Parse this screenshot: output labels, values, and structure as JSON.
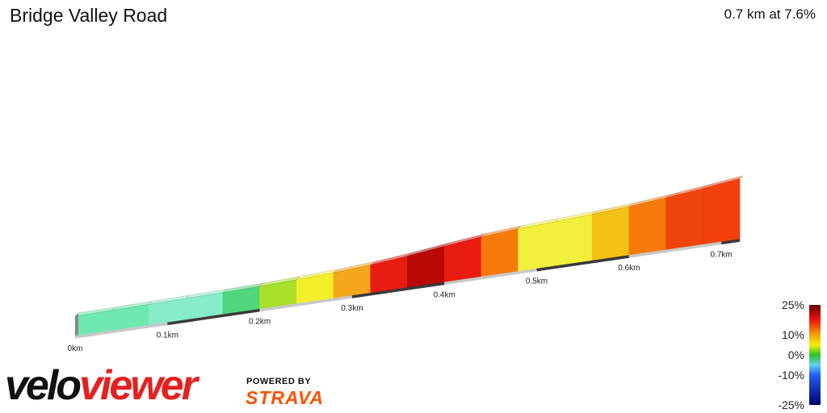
{
  "header": {
    "title": "Bridge Valley Road",
    "summary": "0.7 km at 7.6%"
  },
  "branding": {
    "logo_part1": "velo",
    "logo_part2": "viewer",
    "powered_by": "POWERED BY",
    "partner": "STRAVA",
    "logo_colors": {
      "dark": "#111111",
      "red": "#e4211f",
      "strava": "#fc5200"
    }
  },
  "chart_data": {
    "type": "area",
    "title": "Bridge Valley Road",
    "subtitle": "0.7 km at 7.6%",
    "xlabel": "",
    "ylabel": "",
    "x_ticks": [
      "0km",
      "0.1km",
      "0.2km",
      "0.3km",
      "0.4km",
      "0.5km",
      "0.6km",
      "0.7km"
    ],
    "x_tick_values": [
      0,
      0.1,
      0.2,
      0.3,
      0.4,
      0.5,
      0.6,
      0.7
    ],
    "xlim": [
      0,
      0.72
    ],
    "distance_km": [
      0,
      0.04,
      0.08,
      0.12,
      0.16,
      0.2,
      0.24,
      0.28,
      0.32,
      0.36,
      0.4,
      0.44,
      0.48,
      0.52,
      0.56,
      0.6,
      0.64,
      0.68,
      0.72
    ],
    "gradient_percent": [
      2,
      2,
      2,
      2,
      3,
      5,
      6,
      9,
      13,
      17,
      15,
      10,
      7,
      7,
      9,
      13,
      15,
      16,
      17
    ],
    "gradient_colors": [
      "#6ee8b0",
      "#6ee8b0",
      "#86ecc8",
      "#86ecc8",
      "#4fd67a",
      "#a8e02a",
      "#f2ef2a",
      "#f5a61a",
      "#e81c10",
      "#b80808",
      "#e81c10",
      "#f57a0a",
      "#f2ef3a",
      "#f2ef3a",
      "#f5c014",
      "#f57a0a",
      "#f0440c",
      "#f0400c",
      "#e81c10"
    ],
    "legend": {
      "labels": [
        "25%",
        "10%",
        "0%",
        "-10%",
        "-25%"
      ],
      "values": [
        25,
        10,
        0,
        -10,
        -25
      ],
      "gradient_stops": [
        {
          "value": 25,
          "color": "#6a0000"
        },
        {
          "value": 18,
          "color": "#e81010"
        },
        {
          "value": 10,
          "color": "#f5a000"
        },
        {
          "value": 5,
          "color": "#f2ef00"
        },
        {
          "value": 0,
          "color": "#2ec22e"
        },
        {
          "value": -5,
          "color": "#60d0f0"
        },
        {
          "value": -10,
          "color": "#2060f0"
        },
        {
          "value": -25,
          "color": "#000070"
        }
      ]
    },
    "grid": false
  }
}
